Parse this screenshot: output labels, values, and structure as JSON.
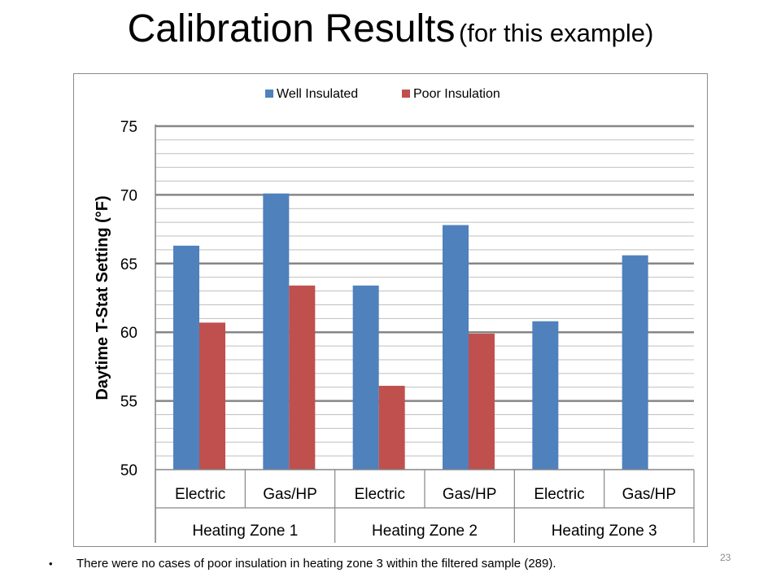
{
  "slide": {
    "title_main": "Calibration Results",
    "title_sub": "(for this example)",
    "bullet_text": "There were no cases of poor insulation in heating zone 3 within the filtered sample (289).",
    "page_number": "23"
  },
  "chart_data": {
    "type": "bar",
    "ylabel": "Daytime T-Stat Setting (°F)",
    "ylim": [
      50,
      75
    ],
    "yticks": [
      50,
      55,
      60,
      65,
      70,
      75
    ],
    "grid": true,
    "legend_position": "top",
    "categories": [
      "Electric",
      "Gas/HP",
      "Electric",
      "Gas/HP",
      "Electric",
      "Gas/HP"
    ],
    "groups": [
      "Heating Zone 1",
      "Heating Zone 2",
      "Heating Zone 3"
    ],
    "series": [
      {
        "name": "Well Insulated",
        "color": "#4f81bd",
        "values": [
          66.3,
          70.1,
          63.4,
          67.8,
          60.8,
          65.6
        ]
      },
      {
        "name": "Poor Insulation",
        "color": "#c0504d",
        "values": [
          60.7,
          63.4,
          56.1,
          59.9,
          null,
          null
        ]
      }
    ]
  }
}
